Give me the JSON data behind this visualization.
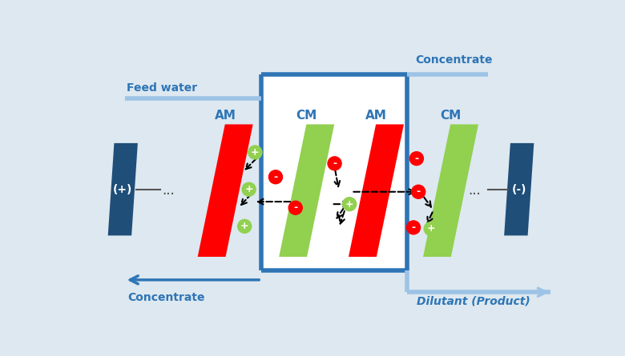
{
  "bg_color": "#dde8f0",
  "membrane_label_color": "#2e75b6",
  "membrane_label_fontsize": 11,
  "flow_label_fontsize": 10,
  "electrode_color": "#1f4e79",
  "am_color": "#ff0000",
  "cm_color": "#92d050",
  "ion_pos_color": "#92d050",
  "ion_neg_color": "#ff0000",
  "pipe_color_dark": "#2e75b6",
  "pipe_color_light": "#9dc3e6",
  "feed_label": "Feed water",
  "concentrate_label_top": "Concentrate",
  "concentrate_label_bottom": "Concentrate",
  "dilutant_label": "Dilutant (Product)",
  "plus_label": "(+)",
  "minus_label": "(-)",
  "white_bg": "#ffffff",
  "lw_dark": 3.0,
  "lw_light": 3.0
}
